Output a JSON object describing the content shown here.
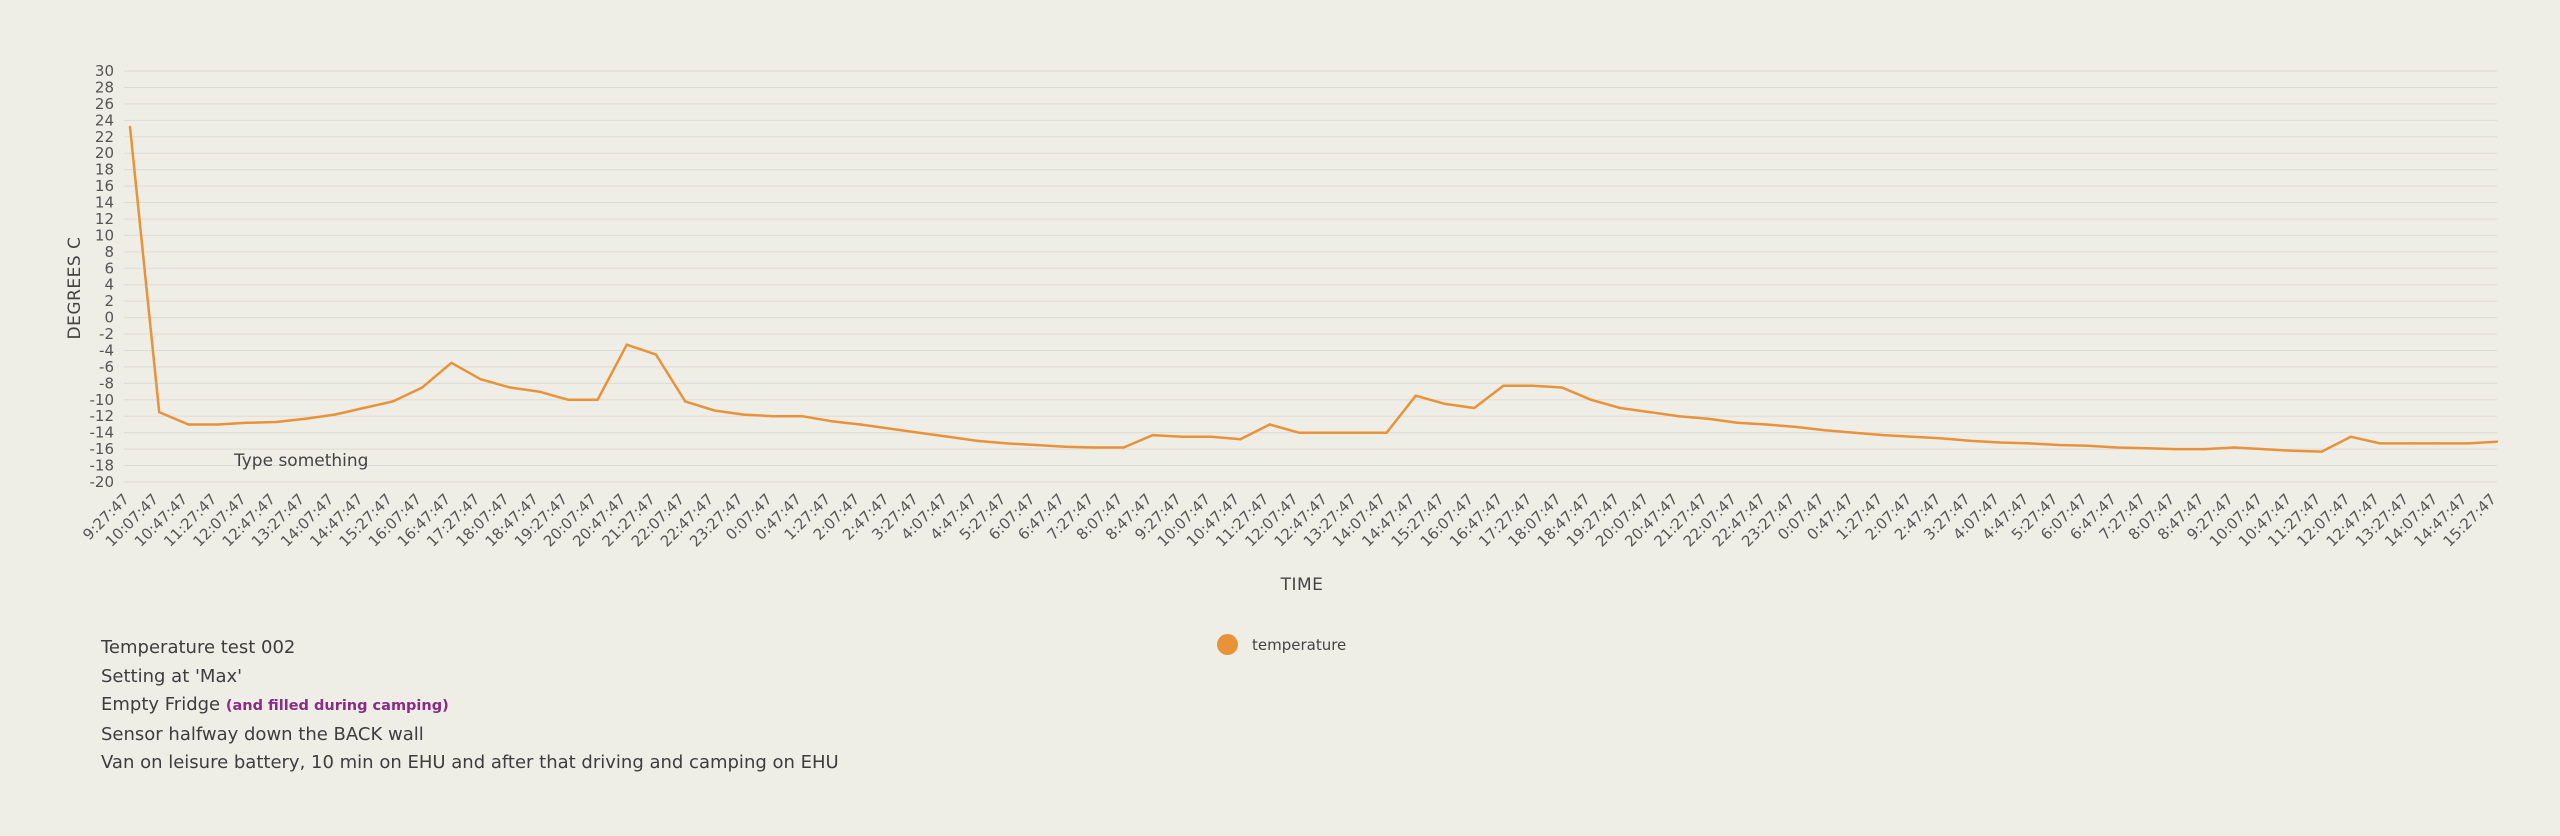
{
  "chart_data": {
    "type": "line",
    "ylabel": "DEGREES C",
    "xlabel": "TIME",
    "ylim": [
      -20,
      30
    ],
    "y_ticks": [
      30,
      28,
      26,
      24,
      22,
      20,
      18,
      16,
      14,
      12,
      10,
      8,
      6,
      4,
      2,
      0,
      -2,
      -4,
      -6,
      -8,
      -10,
      -12,
      -14,
      -16,
      -18,
      -20
    ],
    "grid": true,
    "legend_position": "bottom-center",
    "annotation": "Type something",
    "categories": [
      "9:27:47",
      "10:07:47",
      "10:47:47",
      "11:27:47",
      "12:07:47",
      "12:47:47",
      "13:27:47",
      "14:07:47",
      "14:47:47",
      "15:27:47",
      "16:07:47",
      "16:47:47",
      "17:27:47",
      "18:07:47",
      "18:47:47",
      "19:27:47",
      "20:07:47",
      "20:47:47",
      "21:27:47",
      "22:07:47",
      "22:47:47",
      "23:27:47",
      "0:07:47",
      "0:47:47",
      "1:27:47",
      "2:07:47",
      "2:47:47",
      "3:27:47",
      "4:07:47",
      "4:47:47",
      "5:27:47",
      "6:07:47",
      "6:47:47",
      "7:27:47",
      "8:07:47",
      "8:47:47",
      "9:27:47",
      "10:07:47",
      "10:47:47",
      "11:27:47",
      "12:07:47",
      "12:47:47",
      "13:27:47",
      "14:07:47",
      "14:47:47",
      "15:27:47",
      "16:07:47",
      "16:47:47",
      "17:27:47",
      "18:07:47",
      "18:47:47",
      "19:27:47",
      "20:07:47",
      "20:47:47",
      "21:27:47",
      "22:07:47",
      "22:47:47",
      "23:27:47",
      "0:07:47",
      "0:47:47",
      "1:27:47",
      "2:07:47",
      "2:47:47",
      "3:27:47",
      "4:07:47",
      "4:47:47",
      "5:27:47",
      "6:07:47",
      "6:47:47",
      "7:27:47",
      "8:07:47",
      "8:47:47",
      "9:27:47",
      "10:07:47",
      "10:47:47",
      "11:27:47",
      "12:07:47",
      "12:47:47",
      "13:27:47",
      "14:07:47",
      "14:47:47",
      "15:27:47"
    ],
    "series": [
      {
        "name": "temperature",
        "color": "#e8923a",
        "values": [
          23.2,
          -11.5,
          -13.0,
          -13.0,
          -12.8,
          -12.7,
          -12.3,
          -11.8,
          -11.0,
          -10.2,
          -8.5,
          -5.5,
          -7.5,
          -8.5,
          -9.0,
          -10.0,
          -10.0,
          -3.3,
          -4.5,
          -10.2,
          -11.3,
          -11.8,
          -12.0,
          -12.0,
          -12.6,
          -13.0,
          -13.5,
          -14.0,
          -14.5,
          -15.0,
          -15.3,
          -15.5,
          -15.7,
          -15.8,
          -15.8,
          -14.3,
          -14.5,
          -14.5,
          -14.8,
          -13.0,
          -14.0,
          -14.0,
          -14.0,
          -14.0,
          -9.5,
          -10.5,
          -11.0,
          -8.3,
          -8.3,
          -8.5,
          -10.0,
          -11.0,
          -11.5,
          -12.0,
          -12.3,
          -12.8,
          -13.0,
          -13.3,
          -13.7,
          -14.0,
          -14.3,
          -14.5,
          -14.7,
          -15.0,
          -15.2,
          -15.3,
          -15.5,
          -15.6,
          -15.8,
          -15.9,
          -16.0,
          -16.0,
          -15.8,
          -16.0,
          -16.2,
          -16.3,
          -14.5,
          -15.3,
          -15.3,
          -15.3,
          -15.3,
          -15.1
        ]
      }
    ]
  },
  "legend": {
    "label": "temperature"
  },
  "notes": {
    "line1": "Temperature test 002",
    "line2": "Setting at 'Max'",
    "line3_main": "Empty Fridge",
    "line3_sub": "(and filled during camping)",
    "line4": "Sensor halfway down the BACK wall",
    "line5": "Van on leisure battery, 10 min on EHU and after that driving and camping on EHU"
  }
}
